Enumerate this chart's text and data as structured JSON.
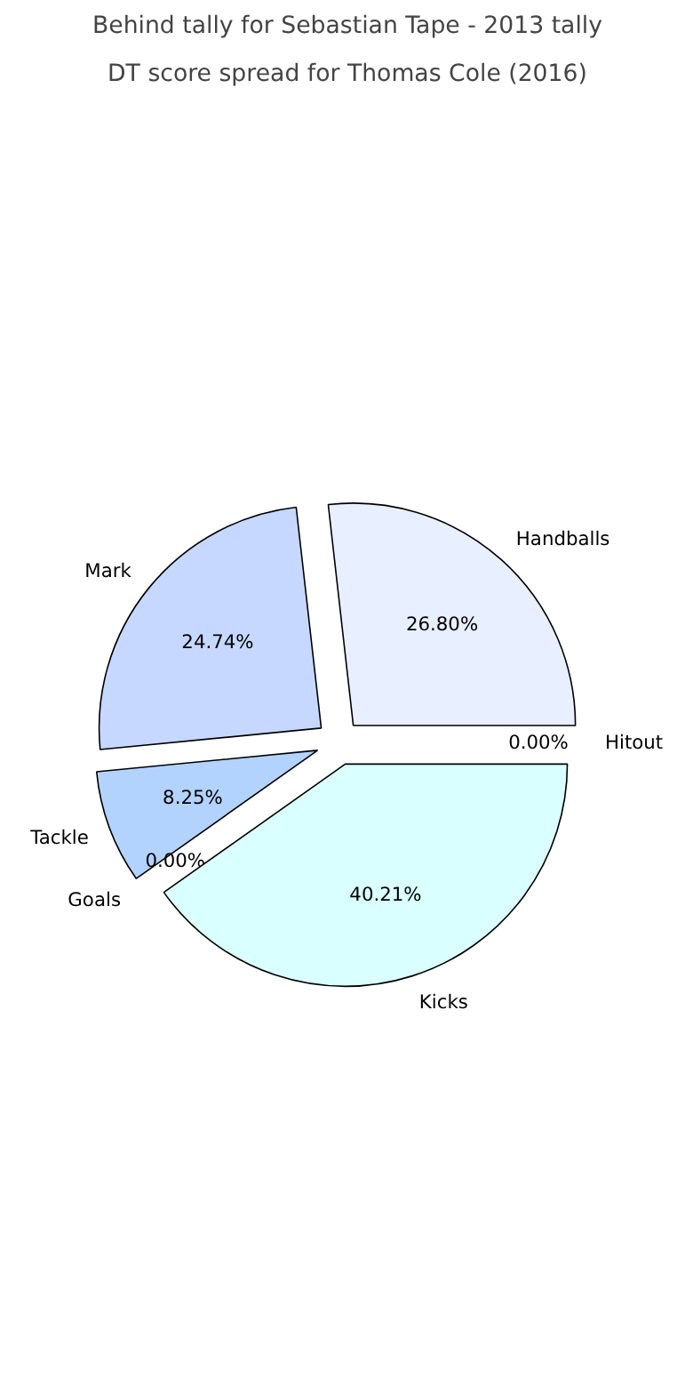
{
  "chart_data": {
    "type": "pie",
    "title": "Behind tally for Sebastian Tape - 2013 tally",
    "subtitle": "DT score spread for Thomas Cole (2016)",
    "categories": [
      "Handballs",
      "Mark",
      "Tackle",
      "Goals",
      "Kicks",
      "Hitout"
    ],
    "values": [
      26.8,
      24.74,
      8.25,
      0.0,
      40.21,
      0.0
    ],
    "value_labels": [
      "26.80%",
      "24.74%",
      "8.25%",
      "0.00%",
      "40.21%",
      "0.00%"
    ],
    "colors": [
      "#e8efff",
      "#c6d8ff",
      "#b3d3ff",
      "#c8e6ff",
      "#daffff",
      "#e0f0ff"
    ]
  }
}
